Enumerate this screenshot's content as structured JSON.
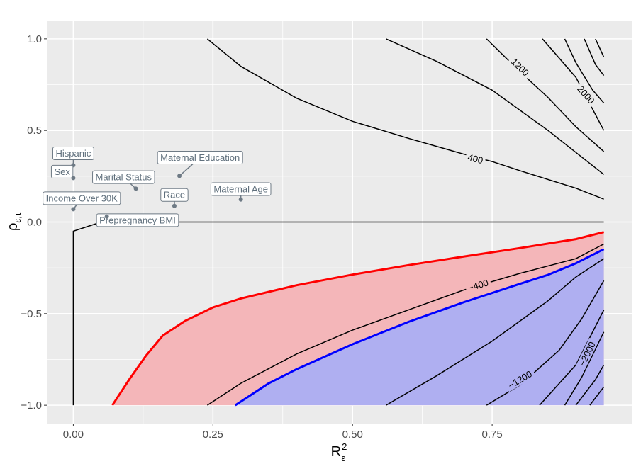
{
  "chart_data": {
    "type": "contour",
    "title": "",
    "xlabel": {
      "main": "R",
      "sub": "ε",
      "sup": "2"
    },
    "ylabel": {
      "main": "ρ",
      "sub": "ε,τ"
    },
    "xlim": [
      -0.0475,
      1.0
    ],
    "ylim": [
      -1.1,
      1.1
    ],
    "grid": true,
    "x_ticks": [
      {
        "value": 0.0,
        "label": "0.00"
      },
      {
        "value": 0.25,
        "label": "0.25"
      },
      {
        "value": 0.5,
        "label": "0.50"
      },
      {
        "value": 0.75,
        "label": "0.75"
      }
    ],
    "y_ticks": [
      {
        "value": 1.0,
        "label": "1.0"
      },
      {
        "value": 0.5,
        "label": "0.5"
      },
      {
        "value": 0.0,
        "label": "0.0"
      },
      {
        "value": -0.5,
        "label": "−0.5"
      },
      {
        "value": -1.0,
        "label": "−1.0"
      }
    ],
    "colors": {
      "panel": "#ebebeb",
      "grid": "#ffffff",
      "contour": "#000000",
      "red_line": "#ff0000",
      "red_fill": "#f4b6b9",
      "blue_line": "#0000ff",
      "blue_fill": "#afaff1",
      "annotation": "#6e7a85"
    },
    "red_boundary": [
      [
        0.07,
        -1.0
      ],
      [
        0.1,
        -0.86
      ],
      [
        0.13,
        -0.73
      ],
      [
        0.16,
        -0.62
      ],
      [
        0.2,
        -0.54
      ],
      [
        0.25,
        -0.466
      ],
      [
        0.3,
        -0.417
      ],
      [
        0.4,
        -0.345
      ],
      [
        0.5,
        -0.287
      ],
      [
        0.6,
        -0.235
      ],
      [
        0.7,
        -0.188
      ],
      [
        0.8,
        -0.142
      ],
      [
        0.9,
        -0.093
      ],
      [
        0.95,
        -0.055
      ]
    ],
    "blue_boundary": [
      [
        0.29,
        -1.0
      ],
      [
        0.35,
        -0.88
      ],
      [
        0.4,
        -0.803
      ],
      [
        0.5,
        -0.667
      ],
      [
        0.6,
        -0.545
      ],
      [
        0.7,
        -0.437
      ],
      [
        0.8,
        -0.337
      ],
      [
        0.85,
        -0.288
      ],
      [
        0.9,
        -0.225
      ],
      [
        0.95,
        -0.148
      ]
    ],
    "contours": [
      {
        "level": "400",
        "label": "400",
        "label_at": [
          0.72,
          0.345
        ],
        "points": [
          [
            0.24,
            1.0
          ],
          [
            0.3,
            0.85
          ],
          [
            0.4,
            0.676
          ],
          [
            0.5,
            0.55
          ],
          [
            0.6,
            0.457
          ],
          [
            0.7,
            0.37
          ],
          [
            0.75,
            0.33
          ],
          [
            0.8,
            0.28
          ],
          [
            0.9,
            0.185
          ],
          [
            0.95,
            0.125
          ]
        ]
      },
      {
        "level": "800",
        "points": [
          [
            0.56,
            1.0
          ],
          [
            0.65,
            0.878
          ],
          [
            0.75,
            0.72
          ],
          [
            0.85,
            0.5
          ],
          [
            0.95,
            0.26
          ]
        ]
      },
      {
        "level": "1200",
        "label": "1200",
        "label_at": [
          0.8,
          0.845
        ],
        "points": [
          [
            0.74,
            1.0
          ],
          [
            0.8,
            0.82
          ],
          [
            0.85,
            0.68
          ],
          [
            0.9,
            0.52
          ],
          [
            0.95,
            0.385
          ]
        ]
      },
      {
        "level": "1600",
        "points": [
          [
            0.84,
            1.0
          ],
          [
            0.9,
            0.79
          ],
          [
            0.95,
            0.5
          ]
        ]
      },
      {
        "level": "2000",
        "label": "2000",
        "label_at": [
          0.918,
          0.695
        ],
        "points": [
          [
            0.88,
            1.0
          ],
          [
            0.9,
            0.87
          ],
          [
            0.93,
            0.72
          ],
          [
            0.95,
            0.65
          ]
        ]
      },
      {
        "level": "2400",
        "points": [
          [
            0.915,
            1.0
          ],
          [
            0.935,
            0.86
          ],
          [
            0.95,
            0.8
          ]
        ]
      },
      {
        "level": "2800",
        "points": [
          [
            0.935,
            1.0
          ],
          [
            0.95,
            0.9
          ]
        ]
      },
      {
        "level": "0",
        "points": [
          [
            0.0,
            -1.0
          ],
          [
            0.0,
            -0.05
          ],
          [
            0.05,
            0.0
          ],
          [
            0.95,
            0.0
          ]
        ]
      },
      {
        "level": "-400",
        "label": "−400",
        "label_at": [
          0.725,
          -0.345
        ],
        "points": [
          [
            0.24,
            -1.0
          ],
          [
            0.3,
            -0.88
          ],
          [
            0.4,
            -0.72
          ],
          [
            0.5,
            -0.59
          ],
          [
            0.6,
            -0.48
          ],
          [
            0.7,
            -0.37
          ],
          [
            0.8,
            -0.28
          ],
          [
            0.9,
            -0.2
          ],
          [
            0.95,
            -0.12
          ]
        ]
      },
      {
        "level": "-800",
        "points": [
          [
            0.56,
            -1.0
          ],
          [
            0.65,
            -0.84
          ],
          [
            0.75,
            -0.65
          ],
          [
            0.85,
            -0.43
          ],
          [
            0.9,
            -0.3
          ],
          [
            0.95,
            -0.2
          ]
        ]
      },
      {
        "level": "-1200",
        "label": "−1200",
        "label_at": [
          0.8,
          -0.86
        ],
        "points": [
          [
            0.74,
            -1.0
          ],
          [
            0.8,
            -0.89
          ],
          [
            0.87,
            -0.7
          ],
          [
            0.91,
            -0.53
          ],
          [
            0.95,
            -0.32
          ]
        ]
      },
      {
        "level": "-1600",
        "points": [
          [
            0.835,
            -1.0
          ],
          [
            0.9,
            -0.78
          ],
          [
            0.95,
            -0.48
          ]
        ]
      },
      {
        "level": "-2000",
        "label": "−2000",
        "label_at": [
          0.92,
          -0.72
        ],
        "points": [
          [
            0.88,
            -1.0
          ],
          [
            0.91,
            -0.85
          ],
          [
            0.95,
            -0.6
          ]
        ]
      },
      {
        "level": "-2400",
        "points": [
          [
            0.9,
            -1.0
          ],
          [
            0.935,
            -0.86
          ],
          [
            0.95,
            -0.78
          ]
        ]
      },
      {
        "level": "-2800",
        "points": [
          [
            0.925,
            -1.0
          ],
          [
            0.95,
            -0.9
          ]
        ]
      }
    ],
    "annotations": [
      {
        "label": "Hispanic",
        "point": [
          0.0,
          0.31
        ],
        "label_at": [
          0.0,
          0.375
        ]
      },
      {
        "label": "Sex",
        "point": [
          0.0,
          0.24
        ],
        "label_at": [
          -0.02,
          0.275
        ]
      },
      {
        "label": "Marital Status",
        "point": [
          0.112,
          0.182
        ],
        "label_at": [
          0.09,
          0.245
        ]
      },
      {
        "label": "Maternal Education",
        "point": [
          0.19,
          0.252
        ],
        "label_at": [
          0.227,
          0.352
        ]
      },
      {
        "label": "Income Over 30K",
        "point": [
          0.0,
          0.07
        ],
        "label_at": [
          0.015,
          0.13
        ]
      },
      {
        "label": "Race",
        "point": [
          0.181,
          0.088
        ],
        "label_at": [
          0.181,
          0.148
        ]
      },
      {
        "label": "Maternal Age",
        "point": [
          0.3,
          0.123
        ],
        "label_at": [
          0.3,
          0.18
        ]
      },
      {
        "label": "Prepregnancy BMI",
        "point": [
          0.06,
          0.03
        ],
        "label_at": [
          0.115,
          0.01
        ]
      }
    ]
  }
}
